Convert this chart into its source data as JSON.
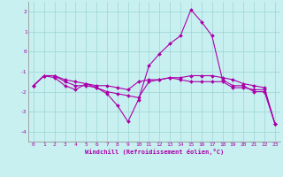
{
  "xlabel": "Windchill (Refroidissement éolien,°C)",
  "background_color": "#c8f0f0",
  "grid_color": "#9cd4d4",
  "line_color": "#aa00aa",
  "xlim": [
    -0.5,
    23.5
  ],
  "ylim": [
    -4.5,
    2.5
  ],
  "yticks": [
    -4,
    -3,
    -2,
    -1,
    0,
    1,
    2
  ],
  "xticks": [
    0,
    1,
    2,
    3,
    4,
    5,
    6,
    7,
    8,
    9,
    10,
    11,
    12,
    13,
    14,
    15,
    16,
    17,
    18,
    19,
    20,
    21,
    22,
    23
  ],
  "series1_x": [
    0,
    1,
    2,
    3,
    4,
    5,
    6,
    7,
    8,
    9,
    10,
    11,
    12,
    13,
    14,
    15,
    16,
    17,
    18,
    19,
    20,
    21,
    22,
    23
  ],
  "series1_y": [
    -1.7,
    -1.2,
    -1.3,
    -1.7,
    -1.9,
    -1.6,
    -1.8,
    -2.1,
    -2.7,
    -3.5,
    -2.4,
    -0.7,
    -0.1,
    0.4,
    0.8,
    2.1,
    1.5,
    0.8,
    -1.4,
    -1.7,
    -1.7,
    -2.0,
    -2.0,
    -3.6
  ],
  "series2_x": [
    0,
    1,
    2,
    3,
    4,
    5,
    6,
    7,
    8,
    9,
    10,
    11,
    12,
    13,
    14,
    15,
    16,
    17,
    18,
    19,
    20,
    21,
    22,
    23
  ],
  "series2_y": [
    -1.7,
    -1.2,
    -1.2,
    -1.4,
    -1.5,
    -1.6,
    -1.7,
    -1.7,
    -1.8,
    -1.9,
    -1.5,
    -1.4,
    -1.4,
    -1.3,
    -1.3,
    -1.2,
    -1.2,
    -1.2,
    -1.3,
    -1.4,
    -1.6,
    -1.7,
    -1.8,
    -3.6
  ],
  "series3_x": [
    0,
    1,
    2,
    3,
    4,
    5,
    6,
    7,
    8,
    9,
    10,
    11,
    12,
    13,
    14,
    15,
    16,
    17,
    18,
    19,
    20,
    21,
    22,
    23
  ],
  "series3_y": [
    -1.7,
    -1.2,
    -1.2,
    -1.5,
    -1.7,
    -1.7,
    -1.8,
    -2.0,
    -2.1,
    -2.2,
    -2.3,
    -1.5,
    -1.4,
    -1.3,
    -1.4,
    -1.5,
    -1.5,
    -1.5,
    -1.5,
    -1.8,
    -1.8,
    -1.9,
    -1.9,
    -3.6
  ]
}
